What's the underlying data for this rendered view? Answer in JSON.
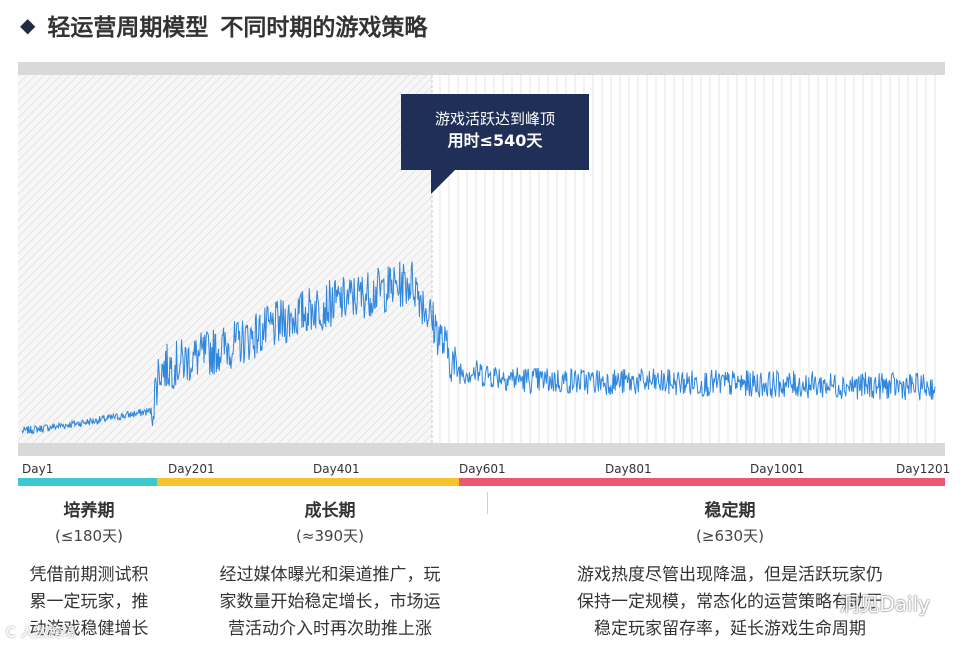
{
  "title": {
    "bullet": "◆",
    "main": "轻运营周期模型",
    "sub": "不同时期的游戏策略"
  },
  "callout": {
    "line1": "游戏活跃达到峰顶",
    "line2": "用时≤540天"
  },
  "colors": {
    "line": "#2f86dd",
    "phase1": "#3cc8d0",
    "phase2": "#f5c230",
    "phase3": "#ec5870",
    "callout_bg": "#1f2f57",
    "band": "#d9d9d9"
  },
  "phases": [
    {
      "name": "培养期",
      "duration": "(≤180天)",
      "desc": [
        "凭借前期测试积",
        "累一定玩家，推",
        "动游戏稳健增长"
      ]
    },
    {
      "name": "成长期",
      "duration": "(≈390天)",
      "desc": [
        "经过媒体曝光和渠道推广，玩",
        "家数量开始稳定增长，市场运",
        "营活动介入时再次助推上涨"
      ]
    },
    {
      "name": "稳定期",
      "duration": "(≥630天)",
      "desc": [
        "游戏热度尽管出现降温，但是活跃玩家仍",
        "保持一定规模，常态化的运营策略有助于",
        "稳定玩家留存率，延长游戏生命周期"
      ]
    }
  ],
  "chart_data": {
    "type": "line",
    "x_ticks": [
      "Day1",
      "Day201",
      "Day401",
      "Day601",
      "Day801",
      "Day1001",
      "Day1201"
    ],
    "xlim": [
      1,
      1260
    ],
    "peak_day": 540,
    "annotation": "游戏活跃达到峰顶 用时≤540天",
    "series_trend": [
      {
        "day": 1,
        "level": 2
      },
      {
        "day": 100,
        "level": 5
      },
      {
        "day": 180,
        "level": 8
      },
      {
        "day": 190,
        "level": 20
      },
      {
        "day": 300,
        "level": 28
      },
      {
        "day": 400,
        "level": 38
      },
      {
        "day": 540,
        "level": 46
      },
      {
        "day": 600,
        "level": 20
      },
      {
        "day": 700,
        "level": 17
      },
      {
        "day": 1260,
        "level": 15
      }
    ],
    "grid": "vertical lines in stable phase",
    "legend": "none"
  },
  "watermarks": {
    "right": "洞见Daily",
    "left": "C 人数跨境"
  }
}
